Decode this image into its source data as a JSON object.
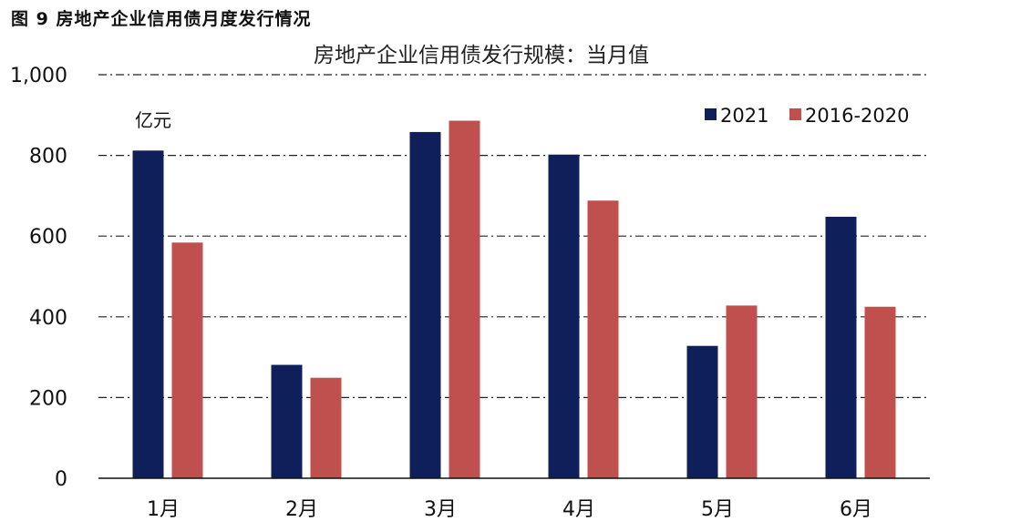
{
  "figure_caption": "图 9 房地产企业信用债月度发行情况",
  "chart_data": {
    "type": "bar",
    "title": "房地产企业信用债发行规模：当月值",
    "unit_label": "亿元",
    "categories": [
      "1月",
      "2月",
      "3月",
      "4月",
      "5月",
      "6月"
    ],
    "series": [
      {
        "name": "2021",
        "color": "#0f1f5a",
        "values": [
          812,
          281,
          858,
          802,
          328,
          648
        ]
      },
      {
        "name": "2016-2020",
        "color": "#c0504d",
        "values": [
          584,
          249,
          886,
          688,
          428,
          425
        ]
      }
    ],
    "ylim": [
      0,
      1000
    ],
    "yticks": [
      0,
      200,
      400,
      600,
      800,
      1000
    ],
    "ytick_labels": [
      "0",
      "200",
      "400",
      "600",
      "800",
      "1,000"
    ],
    "grid": true,
    "legend_position": "top-right"
  }
}
